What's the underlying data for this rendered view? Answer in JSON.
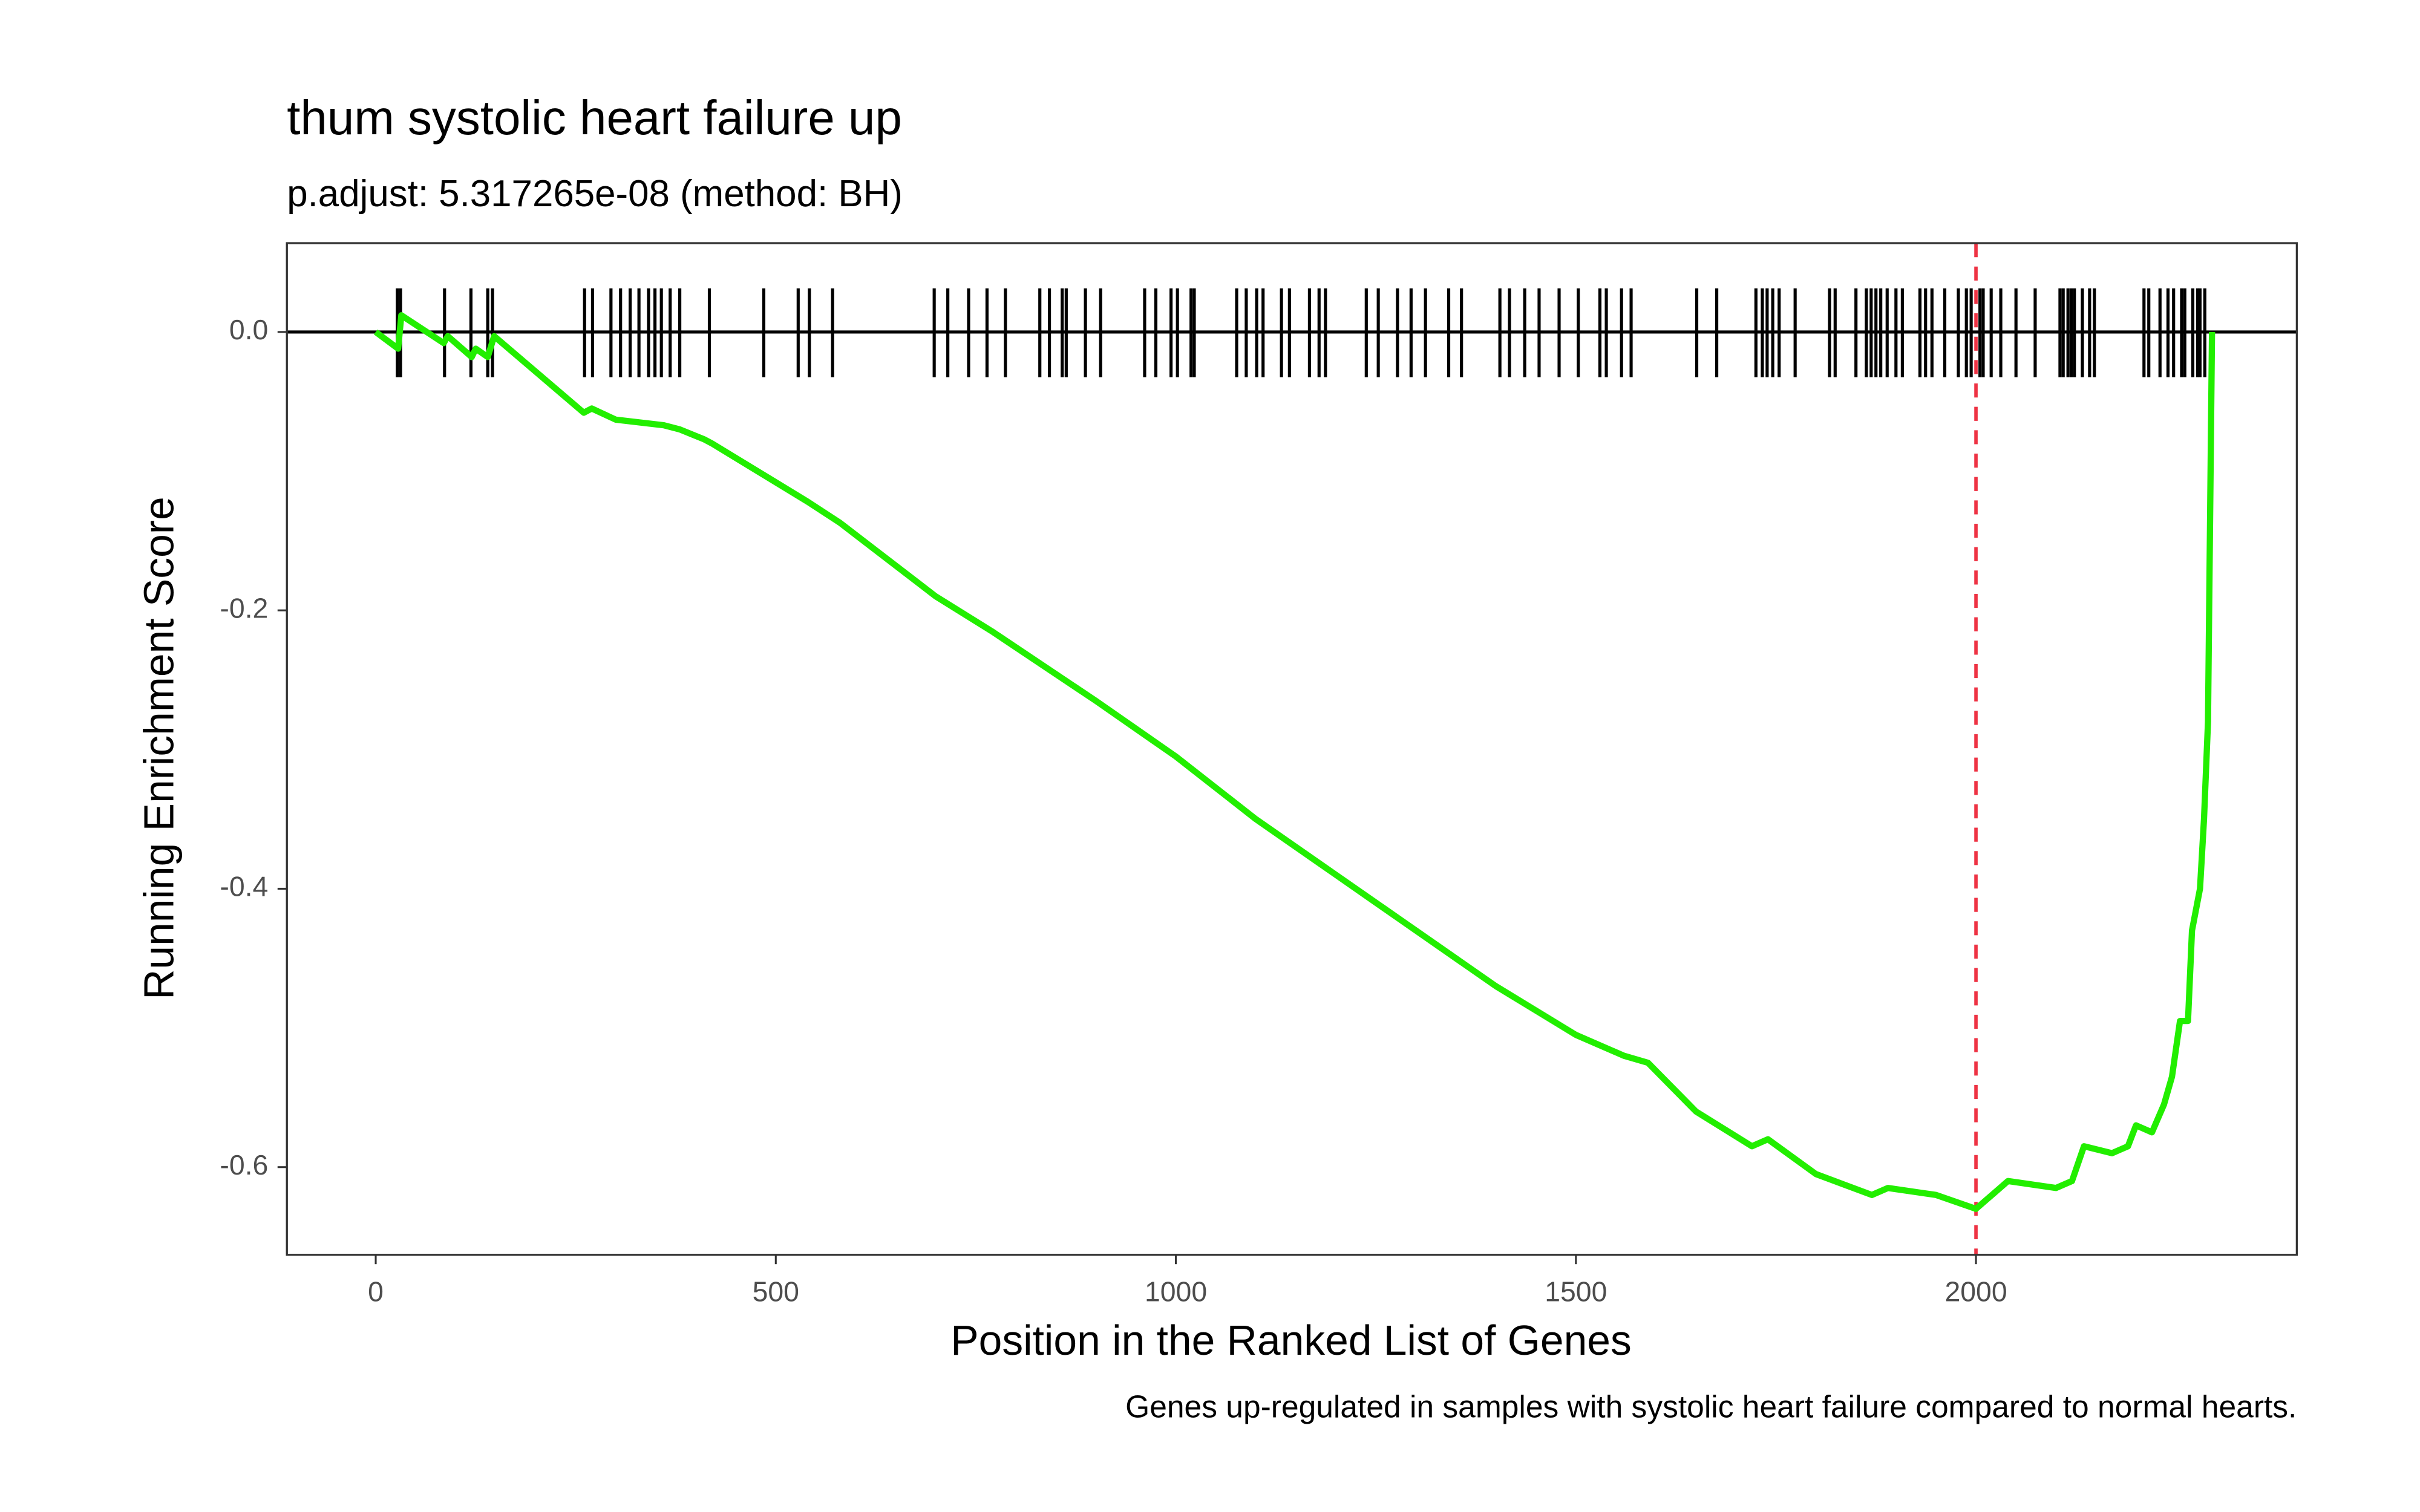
{
  "chart_data": {
    "type": "line",
    "title": "thum systolic heart failure up",
    "subtitle": "p.adjust: 5.317265e-08 (method: BH)",
    "x_label": "Position in the Ranked List of Genes",
    "y_label": "Running Enrichment Score",
    "caption": "Genes up-regulated in samples with systolic heart failure compared to normal hearts.",
    "x": [
      0,
      28,
      32,
      85,
      90,
      120,
      125,
      140,
      148,
      260,
      270,
      300,
      360,
      380,
      410,
      420,
      500,
      540,
      580,
      700,
      770,
      900,
      1000,
      1100,
      1200,
      1300,
      1400,
      1500,
      1560,
      1590,
      1650,
      1720,
      1740,
      1800,
      1870,
      1890,
      1950,
      2000,
      2010,
      2040,
      2100,
      2120,
      2135,
      2170,
      2190,
      2200,
      2220,
      2235,
      2245,
      2255,
      2265,
      2270,
      2280,
      2285,
      2290,
      2295
    ],
    "series": [
      {
        "color": "#22ee00",
        "values": [
          0,
          -0.012,
          0.012,
          -0.008,
          -0.003,
          -0.018,
          -0.012,
          -0.018,
          -0.003,
          -0.058,
          -0.055,
          -0.063,
          -0.067,
          -0.07,
          -0.077,
          -0.08,
          -0.108,
          -0.122,
          -0.137,
          -0.19,
          -0.215,
          -0.265,
          -0.305,
          -0.35,
          -0.39,
          -0.43,
          -0.47,
          -0.505,
          -0.52,
          -0.525,
          -0.56,
          -0.585,
          -0.58,
          -0.605,
          -0.62,
          -0.615,
          -0.62,
          -0.63,
          -0.625,
          -0.61,
          -0.615,
          -0.61,
          -0.585,
          -0.59,
          -0.585,
          -0.57,
          -0.575,
          -0.555,
          -0.535,
          -0.495,
          -0.495,
          -0.43,
          -0.4,
          -0.35,
          -0.28,
          0
        ]
      }
    ],
    "hits": [
      27,
      31,
      86,
      119,
      140,
      146,
      261,
      271,
      294,
      306,
      318,
      329,
      341,
      349,
      357,
      368,
      380,
      417,
      485,
      528,
      542,
      571,
      698,
      715,
      741,
      764,
      787,
      830,
      842,
      858,
      863,
      887,
      906,
      961,
      975,
      994,
      1002,
      1019,
      1023,
      1076,
      1088,
      1101,
      1109,
      1132,
      1142,
      1167,
      1179,
      1187,
      1238,
      1253,
      1277,
      1294,
      1312,
      1341,
      1357,
      1405,
      1417,
      1436,
      1454,
      1479,
      1503,
      1530,
      1538,
      1557,
      1569,
      1651,
      1676,
      1725,
      1733,
      1739,
      1746,
      1754,
      1774,
      1817,
      1824,
      1850,
      1863,
      1869,
      1875,
      1881,
      1889,
      1900,
      1908,
      1930,
      1937,
      1945,
      1961,
      1978,
      1988,
      1994,
      2005,
      2009,
      2019,
      2031,
      2050,
      2074,
      2105,
      2109,
      2115,
      2119,
      2123,
      2133,
      2142,
      2148,
      2210,
      2216,
      2230,
      2240,
      2247,
      2257,
      2261,
      2271,
      2277,
      2280,
      2286
    ],
    "vline": 2000,
    "vline_color": "#ee3344",
    "xlim": [
      -111,
      2401
    ],
    "ylim": [
      -0.663,
      0.0638
    ],
    "xticks": [
      0,
      500,
      1000,
      1500,
      2000
    ],
    "yticks": [
      {
        "value": 0,
        "label": "0.0"
      },
      -0.2,
      -0.4,
      -0.6
    ]
  }
}
